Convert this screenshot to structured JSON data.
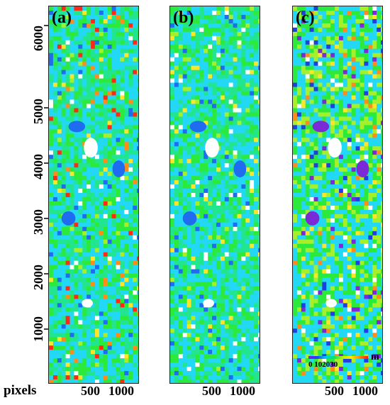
{
  "panels": [
    {
      "label": "(a)",
      "palette": [
        "#22d8f5",
        "#21e58f",
        "#2cea3c",
        "#a6ef2b",
        "#ffe52a",
        "#ff8c1a",
        "#ff2a14",
        "#1f6cf0",
        "#ffffff"
      ]
    },
    {
      "label": "(b)",
      "palette": [
        "#22d8f5",
        "#21e58f",
        "#2cea3c",
        "#a6ef2b",
        "#ffe52a",
        "#1f6cf0",
        "#ffffff"
      ]
    },
    {
      "label": "(c)",
      "palette": [
        "#22d8f5",
        "#2cea3c",
        "#a6ef2b",
        "#ffe52a",
        "#ff8c1a",
        "#1f3fe0",
        "#7a2ad6",
        "#ffffff"
      ]
    }
  ],
  "y_ticks": [
    "1000",
    "2000",
    "3000",
    "4000",
    "5000",
    "6000"
  ],
  "x_ticks": [
    "500",
    "1000"
  ],
  "x_unit": "pixels",
  "colorbar": {
    "ticks": "0 102030",
    "unit": "m"
  }
}
